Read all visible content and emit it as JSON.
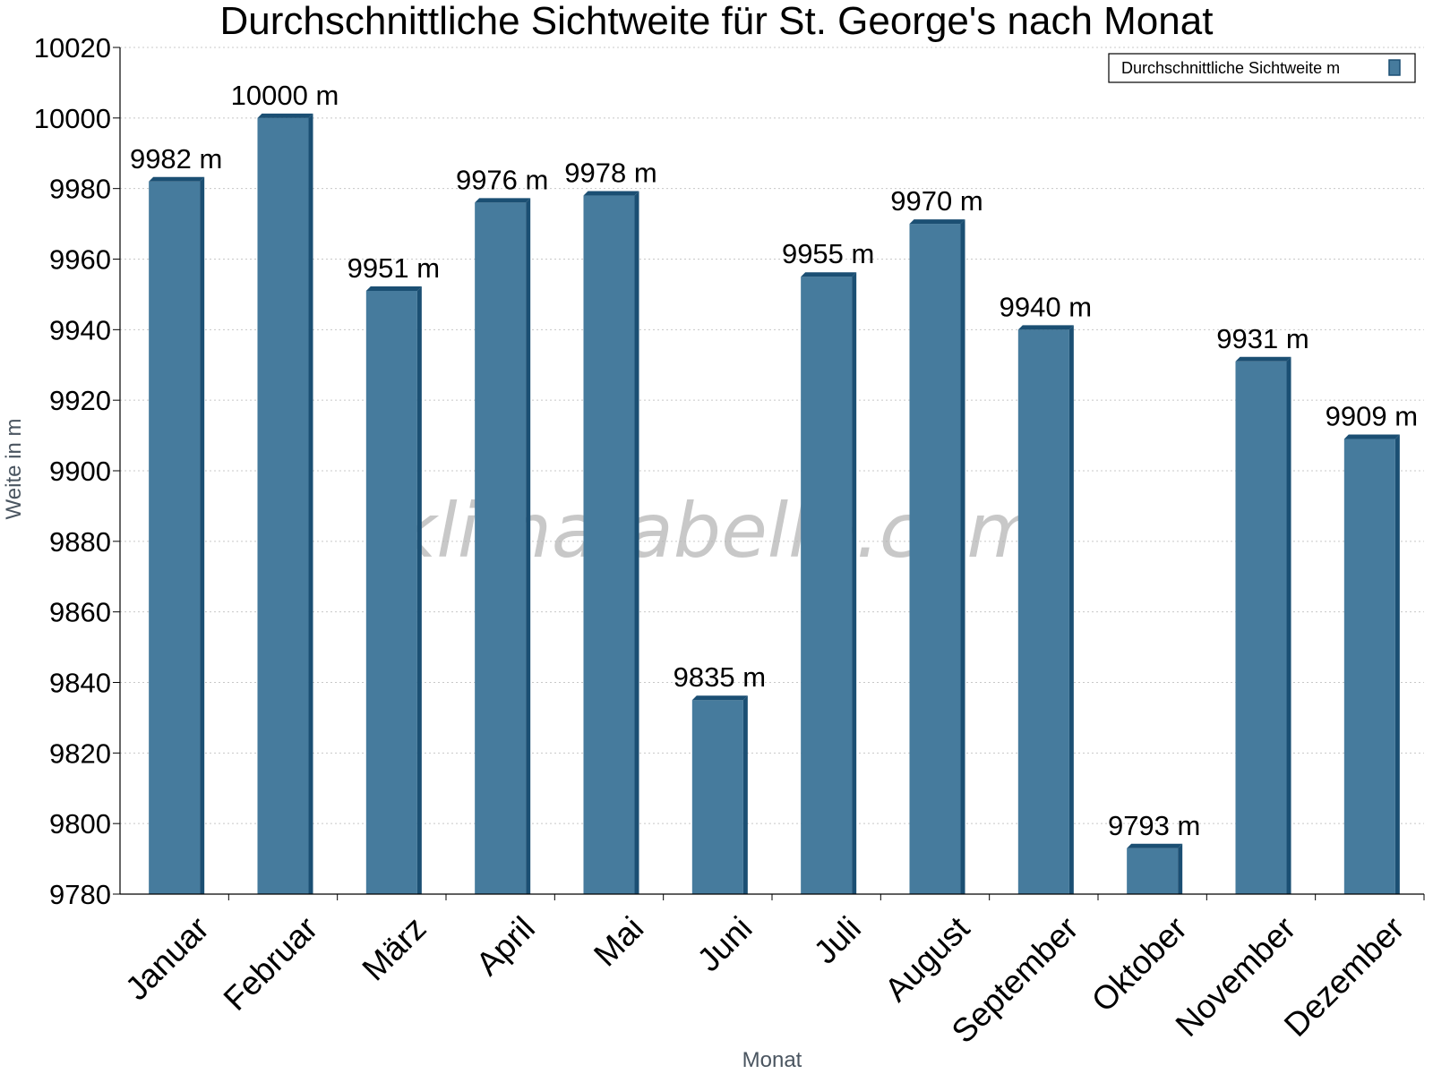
{
  "chart_data": {
    "type": "bar",
    "title": "Durchschnittliche Sichtweite für St. George's nach Monat",
    "xlabel": "Monat",
    "ylabel": "Weite in m",
    "categories": [
      "Januar",
      "Februar",
      "März",
      "April",
      "Mai",
      "Juni",
      "Juli",
      "August",
      "September",
      "Oktober",
      "November",
      "Dezember"
    ],
    "series": [
      {
        "name": "Durchschnittliche Sichtweite m",
        "values": [
          9982,
          10000,
          9951,
          9976,
          9978,
          9835,
          9955,
          9970,
          9940,
          9793,
          9931,
          9909
        ],
        "labels": [
          "9982 m",
          "10000 m",
          "9951 m",
          "9976 m",
          "9978 m",
          "9835 m",
          "9955 m",
          "9970 m",
          "9940 m",
          "9793 m",
          "9931 m",
          "9909 m"
        ]
      }
    ],
    "ylim": [
      9780,
      10020
    ],
    "yticks": [
      9780,
      9800,
      9820,
      9840,
      9860,
      9880,
      9900,
      9920,
      9940,
      9960,
      9980,
      10000,
      10020
    ],
    "grid": true,
    "legend_position": "top-right",
    "colors": {
      "bar": "#467b9d",
      "bar_edge": "#1b4f73",
      "bar_side": "#1b4f73"
    },
    "watermark": "klimatabelle.com"
  }
}
